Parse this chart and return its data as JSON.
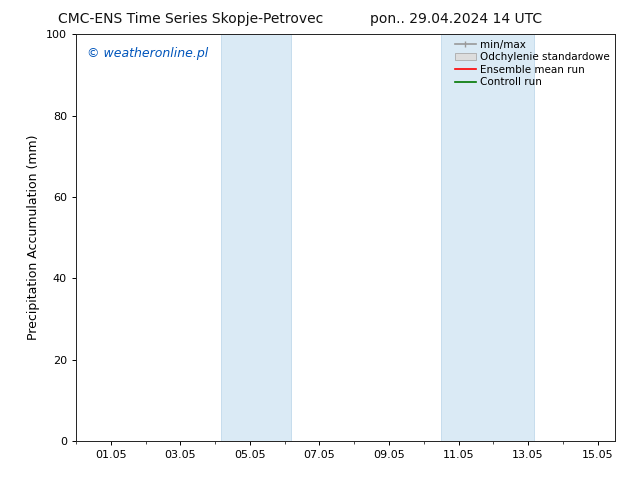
{
  "title_left": "CMC-ENS Time Series Skopje-Petrovec",
  "title_right": "pon.. 29.04.2024 14 UTC",
  "ylabel": "Precipitation Accumulation (mm)",
  "watermark": "© weatheronline.pl",
  "watermark_color": "#0055bb",
  "ylim": [
    0,
    100
  ],
  "yticks": [
    0,
    20,
    40,
    60,
    80,
    100
  ],
  "xlim": [
    0.0,
    15.5
  ],
  "xtick_labels": [
    "01.05",
    "03.05",
    "05.05",
    "07.05",
    "09.05",
    "11.05",
    "13.05",
    "15.05"
  ],
  "xtick_positions": [
    1.0,
    3.0,
    5.0,
    7.0,
    9.0,
    11.0,
    13.0,
    15.0
  ],
  "shaded_bands": [
    {
      "x_start": 4.17,
      "x_end": 6.17
    },
    {
      "x_start": 10.5,
      "x_end": 13.17
    }
  ],
  "band_color": "#daeaf5",
  "band_edge_color": "#b8d4e8",
  "legend_entries": [
    {
      "label": "min/max",
      "color": "#aaaaaa",
      "style": "line"
    },
    {
      "label": "Odchylenie standardowe",
      "color": "#cccccc",
      "style": "band"
    },
    {
      "label": "Ensemble mean run",
      "color": "#ff0000",
      "style": "line"
    },
    {
      "label": "Controll run",
      "color": "#007700",
      "style": "line"
    }
  ],
  "bg_color": "#ffffff",
  "title_fontsize": 10,
  "axis_fontsize": 9,
  "tick_fontsize": 8,
  "watermark_fontsize": 9,
  "legend_fontsize": 7.5
}
